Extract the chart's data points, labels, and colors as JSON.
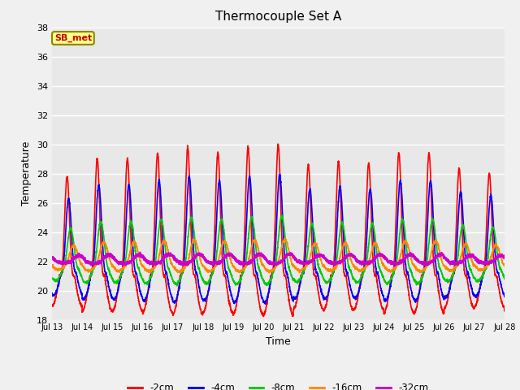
{
  "title": "Thermocouple Set A",
  "xlabel": "Time",
  "ylabel": "Temperature",
  "ylim": [
    18,
    38
  ],
  "background_color": "#e8e8e8",
  "fig_facecolor": "#f0f0f0",
  "annotation_text": "SB_met",
  "annotation_facecolor": "#ffff88",
  "annotation_edgecolor": "#888800",
  "annotation_textcolor": "#cc0000",
  "series": [
    {
      "label": "-2cm",
      "color": "#ff0000",
      "base": 21.0,
      "amplitude": 8.0,
      "phase_shift": 0.0,
      "sharpness": 4.0
    },
    {
      "label": "-4cm",
      "color": "#0000ff",
      "base": 21.2,
      "amplitude": 6.0,
      "phase_shift": 0.05,
      "sharpness": 3.0
    },
    {
      "label": "-8cm",
      "color": "#00cc00",
      "base": 21.5,
      "amplitude": 3.2,
      "phase_shift": 0.12,
      "sharpness": 2.0
    },
    {
      "label": "-16cm",
      "color": "#ff8800",
      "base": 21.8,
      "amplitude": 1.5,
      "phase_shift": 0.22,
      "sharpness": 1.5
    },
    {
      "label": "-32cm",
      "color": "#cc00cc",
      "base": 22.0,
      "amplitude": 0.45,
      "phase_shift": 0.38,
      "sharpness": 1.0
    }
  ],
  "peak_envelope": [
    0.85,
    1.0,
    1.0,
    1.05,
    1.1,
    1.05,
    1.1,
    1.12,
    0.95,
    0.98,
    0.96,
    1.05,
    1.05,
    0.92,
    0.88
  ],
  "xtick_labels": [
    "Jul 13",
    "Jul 14",
    "Jul 15",
    "Jul 16",
    "Jul 17",
    "Jul 18",
    "Jul 19",
    "Jul 20",
    "Jul 21",
    "Jul 22",
    "Jul 23",
    "Jul 24",
    "Jul 25",
    "Jul 26",
    "Jul 27",
    "Jul 28"
  ],
  "ytick_vals": [
    18,
    20,
    22,
    24,
    26,
    28,
    30,
    32,
    34,
    36,
    38
  ],
  "linewidth": 1.2
}
